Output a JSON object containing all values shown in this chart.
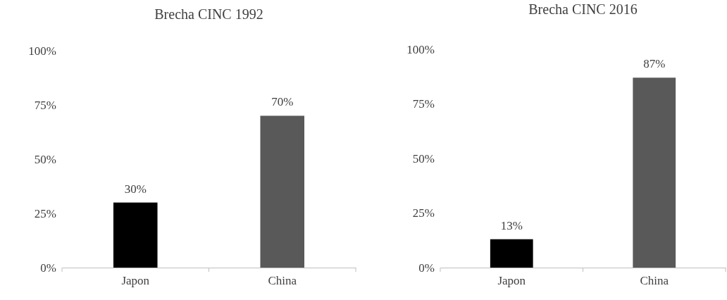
{
  "chart_data": [
    {
      "type": "bar",
      "title": "Brecha CINC 1992",
      "categories": [
        "Japon",
        "China"
      ],
      "values": [
        30,
        70
      ],
      "colors": [
        "#000000",
        "#595959"
      ],
      "value_labels": [
        "30%",
        "70%"
      ],
      "ylim": [
        0,
        100
      ],
      "yticks": [
        {
          "value": 0,
          "label": "0%"
        },
        {
          "value": 25,
          "label": "25%"
        },
        {
          "value": 50,
          "label": "50%"
        },
        {
          "value": 75,
          "label": "75%"
        },
        {
          "value": 100,
          "label": "100%"
        }
      ]
    },
    {
      "type": "bar",
      "title": "Brecha CINC 2016",
      "categories": [
        "Japon",
        "China"
      ],
      "values": [
        13,
        87
      ],
      "colors": [
        "#000000",
        "#595959"
      ],
      "value_labels": [
        "13%",
        "87%"
      ],
      "ylim": [
        0,
        100
      ],
      "yticks": [
        {
          "value": 0,
          "label": "0%"
        },
        {
          "value": 25,
          "label": "25%"
        },
        {
          "value": 50,
          "label": "50%"
        },
        {
          "value": 75,
          "label": "75%"
        },
        {
          "value": 100,
          "label": "100%"
        }
      ]
    }
  ]
}
